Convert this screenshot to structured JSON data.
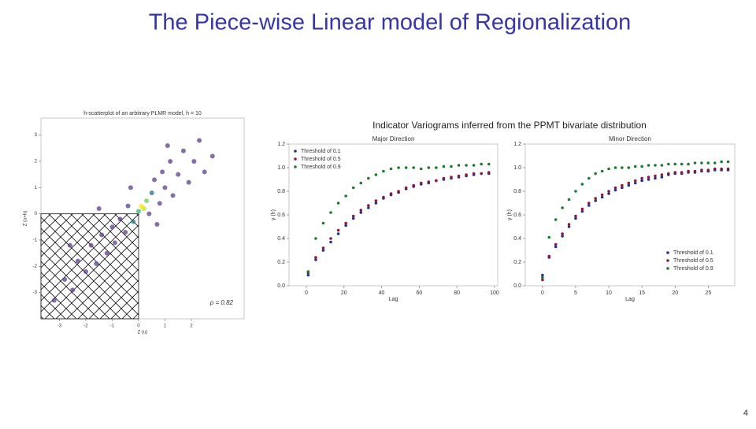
{
  "title": "The Piece-wise Linear model of Regionalization",
  "page_number": "4",
  "variogram_figure_title": "Indicator Variograms inferred from the PPMT bivariate distribution",
  "chart_data": [
    {
      "type": "scatter",
      "title": "h-scatterplot of an arbitrary PLMR model, h = 10",
      "x_label": "Z (u)",
      "y_label": "Z (u+h)",
      "annotation": "ρ = 0.82",
      "x": [
        -3.2,
        -2.8,
        -2.5,
        -2.3,
        -2.0,
        -1.8,
        -1.6,
        -1.4,
        -1.2,
        -1.0,
        -0.9,
        -0.7,
        -0.5,
        -0.4,
        -0.2,
        0.0,
        0.1,
        0.2,
        0.3,
        0.15,
        0.4,
        0.5,
        0.6,
        0.8,
        0.9,
        1.0,
        1.2,
        1.3,
        1.5,
        1.7,
        1.9,
        2.1,
        2.3,
        2.5,
        1.1,
        -0.3,
        0.7,
        -1.5,
        2.8,
        -2.6
      ],
      "values": [
        -3.3,
        -2.5,
        -2.9,
        -1.8,
        -2.2,
        -1.2,
        -1.9,
        -0.8,
        -1.5,
        -0.5,
        -1.1,
        -0.2,
        -0.7,
        0.3,
        -0.3,
        0.1,
        0.3,
        0.2,
        0.5,
        0.25,
        0.0,
        0.8,
        1.3,
        0.4,
        1.6,
        1.0,
        2.0,
        0.7,
        1.5,
        2.4,
        1.2,
        2.0,
        2.8,
        1.6,
        2.6,
        1.0,
        -0.4,
        0.2,
        2.2,
        -1.2
      ],
      "colors": [
        "#5d3f8c",
        "#5d3f8c",
        "#5d3f8c",
        "#5d3f8c",
        "#5d3f8c",
        "#5d3f8c",
        "#5d3f8c",
        "#5d3f8c",
        "#5d3f8c",
        "#5d3f8c",
        "#5d3f8c",
        "#5d3f8c",
        "#5d3f8c",
        "#3e4a89",
        "#26828e",
        "#35b779",
        "#fde725",
        "#b5de2b",
        "#6ece58",
        "#fde725",
        "#5d3f8c",
        "#31688e",
        "#5d3f8c",
        "#5d3f8c",
        "#5d3f8c",
        "#5d3f8c",
        "#5d3f8c",
        "#5d3f8c",
        "#5d3f8c",
        "#5d3f8c",
        "#5d3f8c",
        "#5d3f8c",
        "#5d3f8c",
        "#5d3f8c",
        "#5d3f8c",
        "#5d3f8c",
        "#5d3f8c",
        "#5d3f8c",
        "#5d3f8c",
        "#5d3f8c"
      ],
      "xlim": [
        -3.7,
        4.0
      ],
      "ylim": [
        -4.0,
        3.65
      ],
      "xticks": [
        -3,
        -2,
        -1,
        0,
        1,
        2
      ],
      "yticks": [
        3,
        2,
        1,
        0,
        -1,
        -2,
        -3
      ]
    },
    {
      "type": "scatter",
      "title": "Major Direction",
      "x_label": "Lag",
      "y_label": "γ (h)",
      "legend": "upper left",
      "x": [
        1,
        5,
        9,
        13,
        17,
        21,
        25,
        29,
        33,
        37,
        41,
        45,
        49,
        53,
        57,
        61,
        65,
        69,
        73,
        77,
        81,
        85,
        89,
        93,
        97
      ],
      "series": [
        {
          "name": "Threshold of 0.1",
          "color": "#25308a",
          "values": [
            0.09,
            0.22,
            0.3,
            0.37,
            0.44,
            0.51,
            0.57,
            0.62,
            0.66,
            0.7,
            0.74,
            0.77,
            0.79,
            0.82,
            0.84,
            0.86,
            0.87,
            0.89,
            0.9,
            0.91,
            0.92,
            0.93,
            0.94,
            0.95,
            0.95
          ]
        },
        {
          "name": "Threshold of 0.5",
          "color": "#8b1a3a",
          "values": [
            0.11,
            0.24,
            0.32,
            0.4,
            0.47,
            0.53,
            0.59,
            0.64,
            0.68,
            0.72,
            0.75,
            0.78,
            0.8,
            0.83,
            0.85,
            0.87,
            0.88,
            0.89,
            0.91,
            0.92,
            0.93,
            0.94,
            0.95,
            0.95,
            0.96
          ]
        },
        {
          "name": "Threshold of 0.9",
          "color": "#1e7a2e",
          "values": [
            0.12,
            0.4,
            0.53,
            0.62,
            0.7,
            0.76,
            0.83,
            0.87,
            0.91,
            0.94,
            0.97,
            0.99,
            1.0,
            1.0,
            1.0,
            0.99,
            1.0,
            1.0,
            1.01,
            1.01,
            1.02,
            1.02,
            1.02,
            1.03,
            1.03
          ]
        }
      ],
      "xlim": [
        -9.2,
        101.7
      ],
      "ylim": [
        0,
        1.2
      ],
      "xticks": [
        0,
        20,
        40,
        60,
        80,
        100
      ],
      "yticks": [
        {
          "value": 0,
          "label": "0.0"
        },
        0.2,
        0.4,
        0.6,
        0.8,
        {
          "value": 1,
          "label": "1.0"
        },
        1.2
      ]
    },
    {
      "type": "scatter",
      "title": "Minor Direction",
      "x_label": "Lag",
      "y_label": "γ (h)",
      "legend": "lower right",
      "x": [
        0,
        1,
        2,
        3,
        4,
        5,
        6,
        7,
        8,
        9,
        10,
        11,
        12,
        13,
        14,
        15,
        16,
        17,
        18,
        19,
        20,
        21,
        22,
        23,
        24,
        25,
        26,
        27,
        28
      ],
      "series": [
        {
          "name": "Threshold of 0.1",
          "color": "#25308a",
          "values": [
            0.09,
            0.24,
            0.33,
            0.42,
            0.5,
            0.57,
            0.63,
            0.68,
            0.72,
            0.75,
            0.78,
            0.81,
            0.83,
            0.85,
            0.87,
            0.89,
            0.9,
            0.91,
            0.92,
            0.94,
            0.95,
            0.95,
            0.96,
            0.96,
            0.97,
            0.97,
            0.98,
            0.98,
            0.98
          ]
        },
        {
          "name": "Threshold of 0.5",
          "color": "#8b1a3a",
          "values": [
            0.05,
            0.25,
            0.35,
            0.44,
            0.52,
            0.59,
            0.65,
            0.7,
            0.74,
            0.77,
            0.8,
            0.83,
            0.85,
            0.87,
            0.89,
            0.91,
            0.92,
            0.93,
            0.94,
            0.95,
            0.96,
            0.96,
            0.97,
            0.97,
            0.98,
            0.98,
            0.99,
            0.99,
            0.99
          ]
        },
        {
          "name": "Threshold of 0.9",
          "color": "#1e7a2e",
          "values": [
            0.07,
            0.41,
            0.56,
            0.66,
            0.73,
            0.8,
            0.86,
            0.91,
            0.95,
            0.97,
            0.99,
            1.0,
            1.0,
            1.0,
            1.01,
            1.01,
            1.02,
            1.02,
            1.02,
            1.03,
            1.03,
            1.03,
            1.03,
            1.04,
            1.04,
            1.04,
            1.04,
            1.05,
            1.05
          ]
        }
      ],
      "xlim": [
        -2.6,
        29.0
      ],
      "ylim": [
        0,
        1.2
      ],
      "xticks": [
        0,
        5,
        10,
        15,
        20,
        25
      ],
      "yticks": [
        {
          "value": 0,
          "label": "0.0"
        },
        0.2,
        0.4,
        0.6,
        0.8,
        {
          "value": 1,
          "label": "1.0"
        },
        1.2
      ]
    }
  ]
}
